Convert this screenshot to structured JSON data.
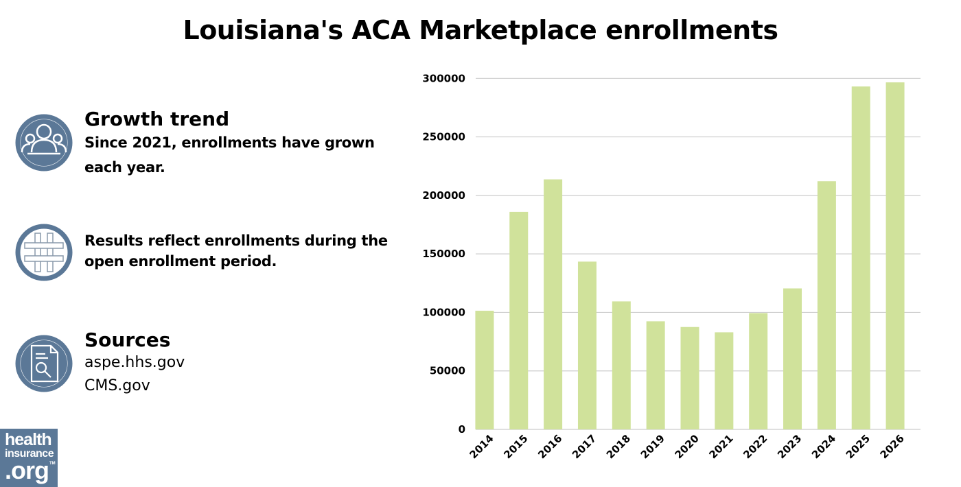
{
  "title": "Louisiana's ACA Marketplace enrollments",
  "notes": [
    {
      "icon": "people-group-icon",
      "heading": "Growth trend",
      "text": [
        "Since 2021, enrollments have grown",
        "each year."
      ]
    },
    {
      "icon": "hashtag-icon",
      "heading": "",
      "text": [
        "Results reflect enrollments during the",
        "open enrollment period."
      ]
    },
    {
      "icon": "document-search-icon",
      "heading": "Sources",
      "text": [
        "aspe.hhs.gov",
        "CMS.gov"
      ]
    }
  ],
  "logo": {
    "line1": "health",
    "line2": "insurance",
    "line3": ".org",
    "tm": "TM"
  },
  "colors": {
    "bar": "#d0e29b",
    "icon": "#5b7897",
    "grid": "#cccccc"
  },
  "chart_data": {
    "type": "bar",
    "title": "Louisiana's ACA Marketplace enrollments",
    "xlabel": "",
    "ylabel": "",
    "categories": [
      "2014",
      "2015",
      "2016",
      "2017",
      "2018",
      "2019",
      "2020",
      "2021",
      "2022",
      "2023",
      "2024",
      "2025",
      "2026"
    ],
    "values": [
      101400,
      185900,
      213700,
      143400,
      109400,
      92400,
      87500,
      83000,
      99400,
      120500,
      212100,
      293100,
      296600
    ],
    "ylim": [
      0,
      300000
    ],
    "yticks": [
      "0",
      "50000",
      "100000",
      "150000",
      "200000",
      "250000",
      "300000"
    ],
    "grid": true,
    "legend": "none"
  }
}
